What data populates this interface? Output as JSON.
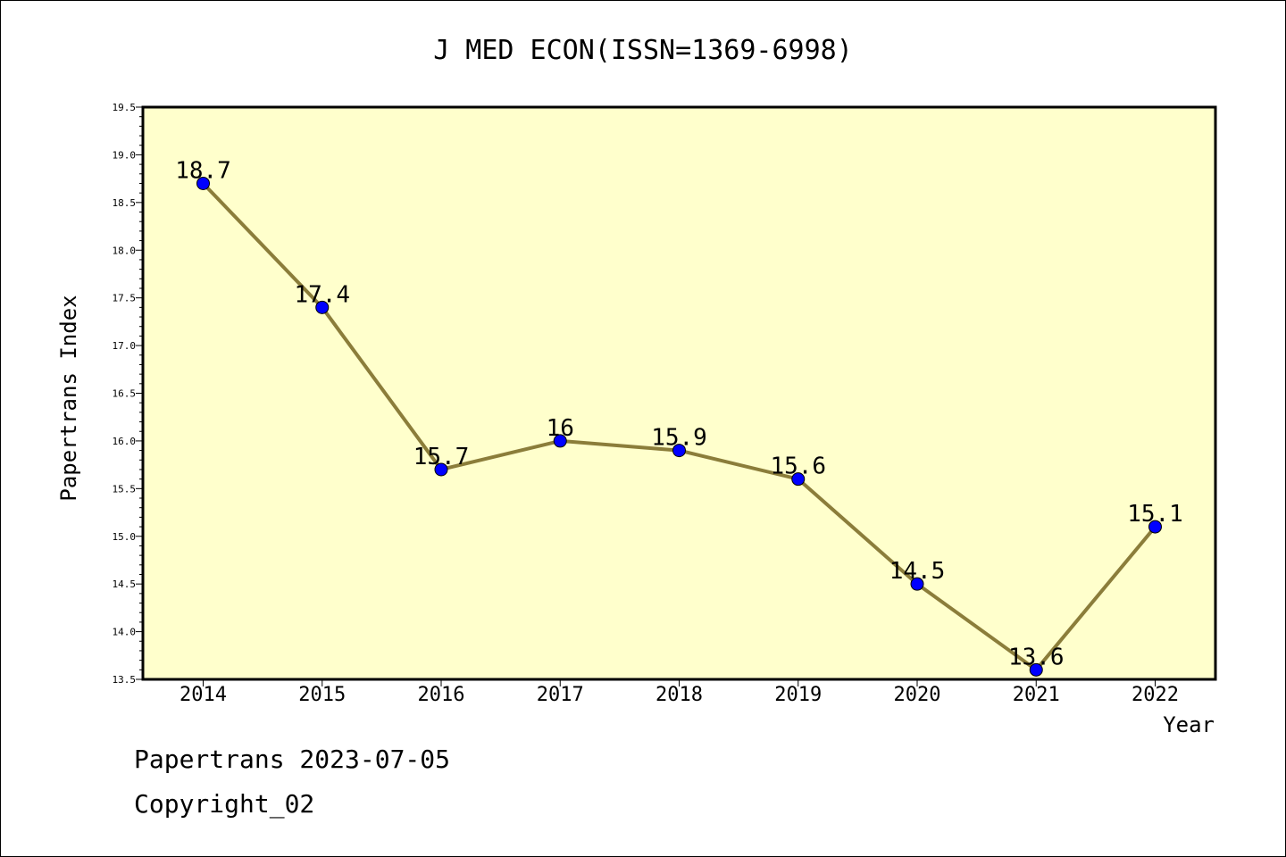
{
  "footer": {
    "line1": "Papertrans 2023-07-05",
    "line2": "Copyright_02"
  },
  "colors": {
    "plot_background": "#ffffcc",
    "line": "#8b7d3a",
    "marker": "#0000ff"
  },
  "chart_data": {
    "type": "line",
    "title": "J MED ECON(ISSN=1369-6998)",
    "xlabel": "Year",
    "ylabel": "Papertrans Index",
    "categories": [
      "2014",
      "2015",
      "2016",
      "2017",
      "2018",
      "2019",
      "2020",
      "2021",
      "2022"
    ],
    "series": [
      {
        "values": [
          18.7,
          17.4,
          15.7,
          16.0,
          15.9,
          15.6,
          14.5,
          13.6,
          15.1
        ],
        "labels": [
          "18.7",
          "17.4",
          "15.7",
          "16",
          "15.9",
          "15.6",
          "14.5",
          "13.6",
          "15.1"
        ]
      }
    ],
    "ylim": [
      13.5,
      19.5
    ],
    "yticks": [
      "13.5",
      "14.0",
      "14.5",
      "15.0",
      "15.5",
      "16.0",
      "16.5",
      "17.0",
      "17.5",
      "18.0",
      "18.5",
      "19.0",
      "19.5"
    ],
    "grid": false,
    "legend": "none"
  }
}
